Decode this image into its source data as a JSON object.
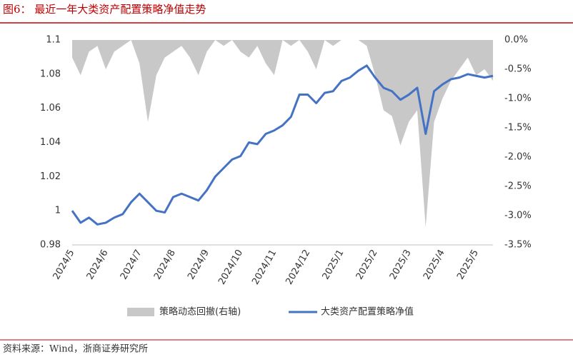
{
  "chart_data": {
    "type": "line",
    "title": "图6：  最近一年大类资产配置策略净值走势",
    "source": "资料来源：Wind，浙商证券研究所",
    "categories": [
      "2024/5",
      null,
      null,
      null,
      "2024/6",
      null,
      null,
      null,
      "2024/7",
      null,
      null,
      null,
      "2024/8",
      null,
      null,
      null,
      "2024/9",
      null,
      null,
      null,
      "2024/10",
      null,
      null,
      null,
      "2024/11",
      null,
      null,
      null,
      "2024/12",
      null,
      null,
      null,
      "2025/1",
      null,
      null,
      null,
      "2025/2",
      null,
      null,
      null,
      "2025/3",
      null,
      null,
      null,
      "2025/4",
      null,
      null,
      null,
      "2025/5",
      null,
      null
    ],
    "series": [
      {
        "name": "策略动态回撤(右轴)",
        "color": "#c8c8c8",
        "axis": "y2",
        "kind": "area",
        "values": [
          -0.3,
          -0.6,
          -0.2,
          -0.1,
          -0.5,
          -0.2,
          -0.1,
          0,
          -0.4,
          -1.4,
          -0.6,
          -0.3,
          -0.2,
          -0.1,
          -0.3,
          -0.6,
          -0.2,
          0,
          -0.1,
          0,
          -0.2,
          -0.3,
          -0.1,
          -0.4,
          -0.6,
          0,
          -0.1,
          0,
          -0.2,
          -0.5,
          0,
          -0.1,
          0,
          0,
          0,
          -0.1,
          -0.6,
          -1.2,
          -1.3,
          -1.8,
          -1.4,
          -1.2,
          -3.2,
          -1.4,
          -1.0,
          -0.7,
          -0.5,
          -0.3,
          -0.6,
          -0.5,
          -0.7
        ]
      },
      {
        "name": "大类资产配置策略净值",
        "color": "#4472c4",
        "kind": "line",
        "values": [
          1.0,
          0.993,
          0.996,
          0.992,
          0.993,
          0.996,
          0.998,
          1.005,
          1.01,
          1.005,
          1.0,
          0.999,
          1.008,
          1.01,
          1.008,
          1.006,
          1.012,
          1.02,
          1.025,
          1.03,
          1.032,
          1.04,
          1.039,
          1.045,
          1.047,
          1.05,
          1.055,
          1.068,
          1.068,
          1.063,
          1.069,
          1.07,
          1.076,
          1.078,
          1.082,
          1.085,
          1.078,
          1.072,
          1.07,
          1.065,
          1.068,
          1.072,
          1.045,
          1.07,
          1.074,
          1.077,
          1.078,
          1.08,
          1.079,
          1.078,
          1.079
        ]
      }
    ],
    "ylim": [
      0.98,
      1.1
    ],
    "yticks": [
      0.98,
      1,
      1.02,
      1.04,
      1.06,
      1.08,
      1.1
    ],
    "y2lim": [
      -3.5,
      0
    ],
    "y2ticks": [
      {
        "value": -3.5,
        "label": "-3.5%"
      },
      {
        "value": -3,
        "label": "-3.0%"
      },
      {
        "value": -2.5,
        "label": "-2.5%"
      },
      {
        "value": -2,
        "label": "-2.0%"
      },
      {
        "value": -1.5,
        "label": "-1.5%"
      },
      {
        "value": -1,
        "label": "-1.0%"
      },
      {
        "value": -0.5,
        "label": "-0.5%"
      },
      {
        "value": 0,
        "label": "0.0%"
      }
    ],
    "legend": "bottom"
  }
}
